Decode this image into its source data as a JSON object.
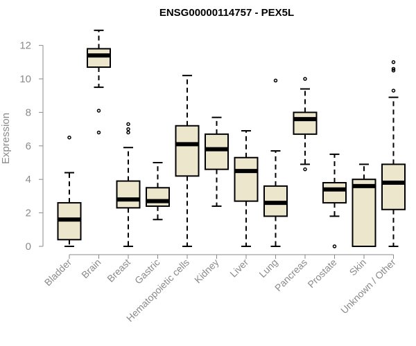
{
  "chart_data": {
    "type": "boxplot",
    "title": "ENSG00000114757 - PEX5L",
    "xlabel": "",
    "ylabel": "Expression",
    "ylim": [
      0,
      13
    ],
    "yticks": [
      0,
      2,
      4,
      6,
      8,
      10,
      12
    ],
    "colors": {
      "box_fill": "#ece6cc",
      "stroke": "#000000",
      "axis": "#8a8a8a"
    },
    "series": [
      {
        "name": "Bladder",
        "whisker_low": 0.0,
        "q1": 0.4,
        "median": 1.6,
        "q3": 2.6,
        "whisker_high": 4.4,
        "outliers": [
          6.5
        ]
      },
      {
        "name": "Brain",
        "whisker_low": 9.5,
        "q1": 10.7,
        "median": 11.4,
        "q3": 11.8,
        "whisker_high": 12.9,
        "outliers": [
          8.1,
          6.8
        ]
      },
      {
        "name": "Breast",
        "whisker_low": 0.0,
        "q1": 2.3,
        "median": 2.8,
        "q3": 3.9,
        "whisker_high": 5.9,
        "outliers": [
          6.8,
          7.0,
          7.3
        ]
      },
      {
        "name": "Gastric",
        "whisker_low": 1.6,
        "q1": 2.4,
        "median": 2.7,
        "q3": 3.5,
        "whisker_high": 5.0,
        "outliers": []
      },
      {
        "name": "Hematopoietic cells",
        "whisker_low": 0.0,
        "q1": 4.2,
        "median": 6.1,
        "q3": 7.2,
        "whisker_high": 10.2,
        "outliers": []
      },
      {
        "name": "Kidney",
        "whisker_low": 2.4,
        "q1": 4.6,
        "median": 5.8,
        "q3": 6.7,
        "whisker_high": 7.7,
        "outliers": []
      },
      {
        "name": "Liver",
        "whisker_low": 0.0,
        "q1": 2.7,
        "median": 4.5,
        "q3": 5.3,
        "whisker_high": 6.9,
        "outliers": []
      },
      {
        "name": "Lung",
        "whisker_low": 0.0,
        "q1": 1.8,
        "median": 2.6,
        "q3": 3.6,
        "whisker_high": 5.7,
        "outliers": [
          9.9
        ]
      },
      {
        "name": "Pancreas",
        "whisker_low": 4.9,
        "q1": 6.7,
        "median": 7.6,
        "q3": 8.0,
        "whisker_high": 9.4,
        "outliers": [
          10.0,
          4.6
        ]
      },
      {
        "name": "Prostate",
        "whisker_low": 1.8,
        "q1": 2.6,
        "median": 3.4,
        "q3": 3.8,
        "whisker_high": 5.5,
        "outliers": [
          0.0
        ]
      },
      {
        "name": "Skin",
        "whisker_low": 0.0,
        "q1": 0.0,
        "median": 3.6,
        "q3": 4.0,
        "whisker_high": 4.9,
        "outliers": []
      },
      {
        "name": "Unknown / Other",
        "whisker_low": 0.0,
        "q1": 2.2,
        "median": 3.8,
        "q3": 4.9,
        "whisker_high": 8.9,
        "outliers": [
          9.3,
          10.5,
          10.6,
          11.0
        ]
      }
    ]
  }
}
